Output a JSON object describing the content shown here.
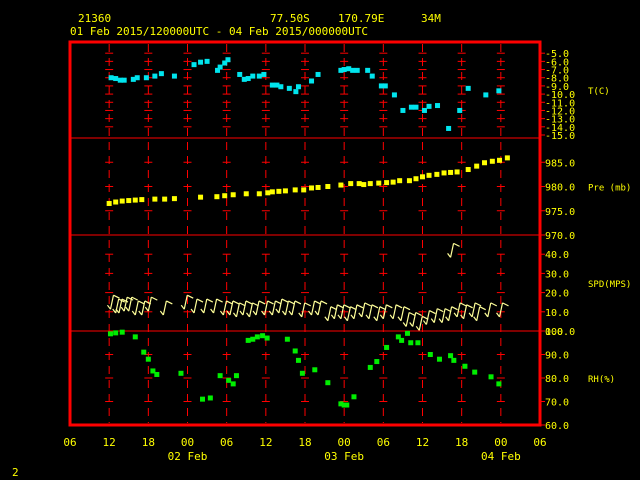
{
  "header": {
    "station": "21360",
    "lat": "77.50S",
    "lon": "170.79E",
    "elev": "34M",
    "range": "01 Feb 2015/120000UTC - 04 Feb 2015/000000UTC"
  },
  "footer_mark": "2",
  "colors": {
    "frame": "#ff0000",
    "text": "#ffff00",
    "temperature": "#00e5ee",
    "pressure": "#ffff00",
    "wind": "#ffff99",
    "rh": "#00ee00"
  },
  "chart_data": {
    "type": "scatter",
    "x_unit": "hours since 01 Feb 2015 06 UTC",
    "x_ticks": [
      "06",
      "12",
      "18",
      "00",
      "06",
      "12",
      "18",
      "00",
      "06",
      "12",
      "18",
      "00",
      "06"
    ],
    "date_labels": [
      {
        "text": "02 Feb",
        "hour": 18
      },
      {
        "text": "03 Feb",
        "hour": 42
      },
      {
        "text": "04 Feb",
        "hour": 66
      }
    ],
    "xlim": [
      0,
      72
    ],
    "panels": [
      {
        "key": "temp",
        "label": "T(C)",
        "ylim": [
          -15,
          -4
        ],
        "ticks": [
          "-5.0",
          "-6.0",
          "-7.0",
          "-8.0",
          "-9.0",
          "-10.0",
          "-11.0",
          "-12.0",
          "-13.0",
          "-14.0",
          "-15.0"
        ],
        "tick_values": [
          -5,
          -6,
          -7,
          -8,
          -9,
          -10,
          -11,
          -12,
          -13,
          -14,
          -15
        ],
        "points": [
          [
            6.3,
            -8.0
          ],
          [
            7,
            -8.1
          ],
          [
            7.7,
            -8.3
          ],
          [
            8.3,
            -8.3
          ],
          [
            9.7,
            -8.2
          ],
          [
            10.3,
            -8.0
          ],
          [
            11.7,
            -8.0
          ],
          [
            13,
            -7.8
          ],
          [
            14,
            -7.5
          ],
          [
            16,
            -7.8
          ],
          [
            19,
            -6.4
          ],
          [
            20,
            -6.1
          ],
          [
            21,
            -6.0
          ],
          [
            22.6,
            -7.1
          ],
          [
            23,
            -6.7
          ],
          [
            23.7,
            -6.2
          ],
          [
            24.2,
            -5.8
          ],
          [
            26,
            -7.6
          ],
          [
            26.7,
            -8.2
          ],
          [
            27.3,
            -8.1
          ],
          [
            28,
            -7.8
          ],
          [
            29,
            -7.8
          ],
          [
            29.7,
            -7.6
          ],
          [
            31,
            -8.9
          ],
          [
            31.7,
            -8.9
          ],
          [
            32.3,
            -9.1
          ],
          [
            33.6,
            -9.3
          ],
          [
            34.6,
            -9.7
          ],
          [
            35,
            -9.1
          ],
          [
            37,
            -8.4
          ],
          [
            38,
            -7.6
          ],
          [
            41.5,
            -7.1
          ],
          [
            42,
            -7.0
          ],
          [
            42.7,
            -6.9
          ],
          [
            43.3,
            -7.1
          ],
          [
            44,
            -7.1
          ],
          [
            45.6,
            -7.1
          ],
          [
            46.3,
            -7.8
          ],
          [
            47.7,
            -9.0
          ],
          [
            48.3,
            -9.0
          ],
          [
            49.7,
            -10.1
          ],
          [
            51,
            -12.0
          ],
          [
            52.3,
            -11.6
          ],
          [
            53,
            -11.6
          ],
          [
            54.3,
            -12.0
          ],
          [
            55,
            -11.5
          ],
          [
            56.3,
            -11.4
          ],
          [
            58,
            -14.2
          ],
          [
            59.7,
            -12.0
          ],
          [
            61,
            -9.3
          ],
          [
            63.7,
            -10.1
          ],
          [
            65.7,
            -9.6
          ]
        ]
      },
      {
        "key": "pres",
        "label": "Pre (mb)",
        "ylim": [
          970,
          990
        ],
        "ticks": [
          "985.0",
          "980.0",
          "975.0",
          "970.0"
        ],
        "tick_values": [
          985,
          980,
          975,
          970
        ],
        "points": [
          [
            6,
            976.5
          ],
          [
            7,
            976.8
          ],
          [
            8,
            977.0
          ],
          [
            9,
            977.1
          ],
          [
            10,
            977.2
          ],
          [
            11,
            977.3
          ],
          [
            13,
            977.4
          ],
          [
            14.5,
            977.4
          ],
          [
            16,
            977.5
          ],
          [
            20,
            977.8
          ],
          [
            22.5,
            977.9
          ],
          [
            23.7,
            978.1
          ],
          [
            25,
            978.3
          ],
          [
            27,
            978.5
          ],
          [
            29,
            978.5
          ],
          [
            30.3,
            978.7
          ],
          [
            31,
            978.9
          ],
          [
            32,
            979.0
          ],
          [
            33,
            979.1
          ],
          [
            34.5,
            979.3
          ],
          [
            35.8,
            979.3
          ],
          [
            37,
            979.7
          ],
          [
            38,
            979.8
          ],
          [
            39.5,
            980.0
          ],
          [
            41.5,
            980.3
          ],
          [
            43,
            980.6
          ],
          [
            44.3,
            980.6
          ],
          [
            45,
            980.4
          ],
          [
            46,
            980.6
          ],
          [
            47.3,
            980.7
          ],
          [
            48.5,
            980.8
          ],
          [
            49.5,
            980.9
          ],
          [
            50.5,
            981.2
          ],
          [
            52,
            981.2
          ],
          [
            53,
            981.6
          ],
          [
            54,
            982.0
          ],
          [
            55,
            982.3
          ],
          [
            56.2,
            982.5
          ],
          [
            57.3,
            982.8
          ],
          [
            58.3,
            982.9
          ],
          [
            59.3,
            983.0
          ],
          [
            61,
            983.5
          ],
          [
            62.3,
            984.2
          ],
          [
            63.5,
            984.9
          ],
          [
            64.7,
            985.2
          ],
          [
            65.8,
            985.4
          ],
          [
            67,
            985.9
          ]
        ]
      },
      {
        "key": "wind",
        "label": "SPD(MPS)",
        "ylim": [
          0,
          50
        ],
        "ticks": [
          "40.0",
          "30.0",
          "20.0",
          "10.0",
          "0.0"
        ],
        "tick_values": [
          40,
          30,
          20,
          10,
          0
        ],
        "points": [
          [
            6.2,
            15
          ],
          [
            7,
            13
          ],
          [
            7.5,
            13
          ],
          [
            8.3,
            14
          ],
          [
            9,
            14
          ],
          [
            10,
            12
          ],
          [
            11,
            12
          ],
          [
            12,
            14
          ],
          [
            14.3,
            12
          ],
          [
            17.5,
            15
          ],
          [
            19,
            13
          ],
          [
            20.5,
            13
          ],
          [
            22,
            13
          ],
          [
            23.5,
            12
          ],
          [
            24.5,
            12
          ],
          [
            25.5,
            11
          ],
          [
            26.5,
            12
          ],
          [
            27.5,
            11
          ],
          [
            28.5,
            12
          ],
          [
            29.8,
            12
          ],
          [
            31,
            12
          ],
          [
            32,
            13
          ],
          [
            33,
            12
          ],
          [
            34,
            12
          ],
          [
            35.5,
            11
          ],
          [
            37,
            12
          ],
          [
            38,
            12
          ],
          [
            39.5,
            9
          ],
          [
            40.5,
            10
          ],
          [
            41.5,
            10
          ],
          [
            42.5,
            9
          ],
          [
            43.5,
            10
          ],
          [
            44.7,
            11
          ],
          [
            45.8,
            10
          ],
          [
            47,
            9
          ],
          [
            48,
            10
          ],
          [
            49.5,
            10
          ],
          [
            50.7,
            9
          ],
          [
            51.5,
            6
          ],
          [
            52.5,
            6
          ],
          [
            53.5,
            4
          ],
          [
            54.6,
            7
          ],
          [
            55.8,
            8
          ],
          [
            57,
            8
          ],
          [
            58,
            9
          ],
          [
            59.3,
            11
          ],
          [
            60.3,
            10
          ],
          [
            61.6,
            11
          ],
          [
            62.3,
            9
          ],
          [
            64,
            11
          ],
          [
            65.8,
            11
          ],
          [
            58.3,
            42
          ]
        ]
      },
      {
        "key": "rh",
        "label": "RH(%)",
        "ylim": [
          60,
          100
        ],
        "ticks": [
          "100.0",
          "90.0",
          "80.0",
          "70.0",
          "60.0"
        ],
        "tick_values": [
          100,
          90,
          80,
          70,
          60
        ],
        "points": [
          [
            6.2,
            98.8
          ],
          [
            7,
            99.2
          ],
          [
            8,
            99.5
          ],
          [
            10,
            97.5
          ],
          [
            11.3,
            91
          ],
          [
            12,
            88
          ],
          [
            12.7,
            83
          ],
          [
            13.3,
            81.5
          ],
          [
            17,
            82
          ],
          [
            20.3,
            71
          ],
          [
            21.5,
            71.5
          ],
          [
            23,
            81
          ],
          [
            24.3,
            79
          ],
          [
            25,
            77.5
          ],
          [
            25.5,
            81
          ],
          [
            27.3,
            96
          ],
          [
            28,
            96.5
          ],
          [
            28.7,
            97.5
          ],
          [
            29.5,
            98
          ],
          [
            30.2,
            97
          ],
          [
            33.3,
            96.5
          ],
          [
            34.5,
            91.5
          ],
          [
            35,
            87.5
          ],
          [
            35.6,
            82
          ],
          [
            37.5,
            83.5
          ],
          [
            39.5,
            78
          ],
          [
            41.5,
            69
          ],
          [
            42,
            68.5
          ],
          [
            42.4,
            68.5
          ],
          [
            43.5,
            72
          ],
          [
            46,
            84.5
          ],
          [
            47,
            87
          ],
          [
            48.5,
            93
          ],
          [
            50.3,
            97.5
          ],
          [
            50.8,
            96
          ],
          [
            51.7,
            99
          ],
          [
            52.2,
            95
          ],
          [
            53.3,
            95
          ],
          [
            55.2,
            90
          ],
          [
            56.6,
            88
          ],
          [
            58.3,
            89.5
          ],
          [
            58.8,
            87.5
          ],
          [
            60.5,
            85
          ],
          [
            62,
            82.5
          ],
          [
            64.5,
            80.5
          ],
          [
            65.7,
            77.5
          ]
        ]
      }
    ]
  }
}
